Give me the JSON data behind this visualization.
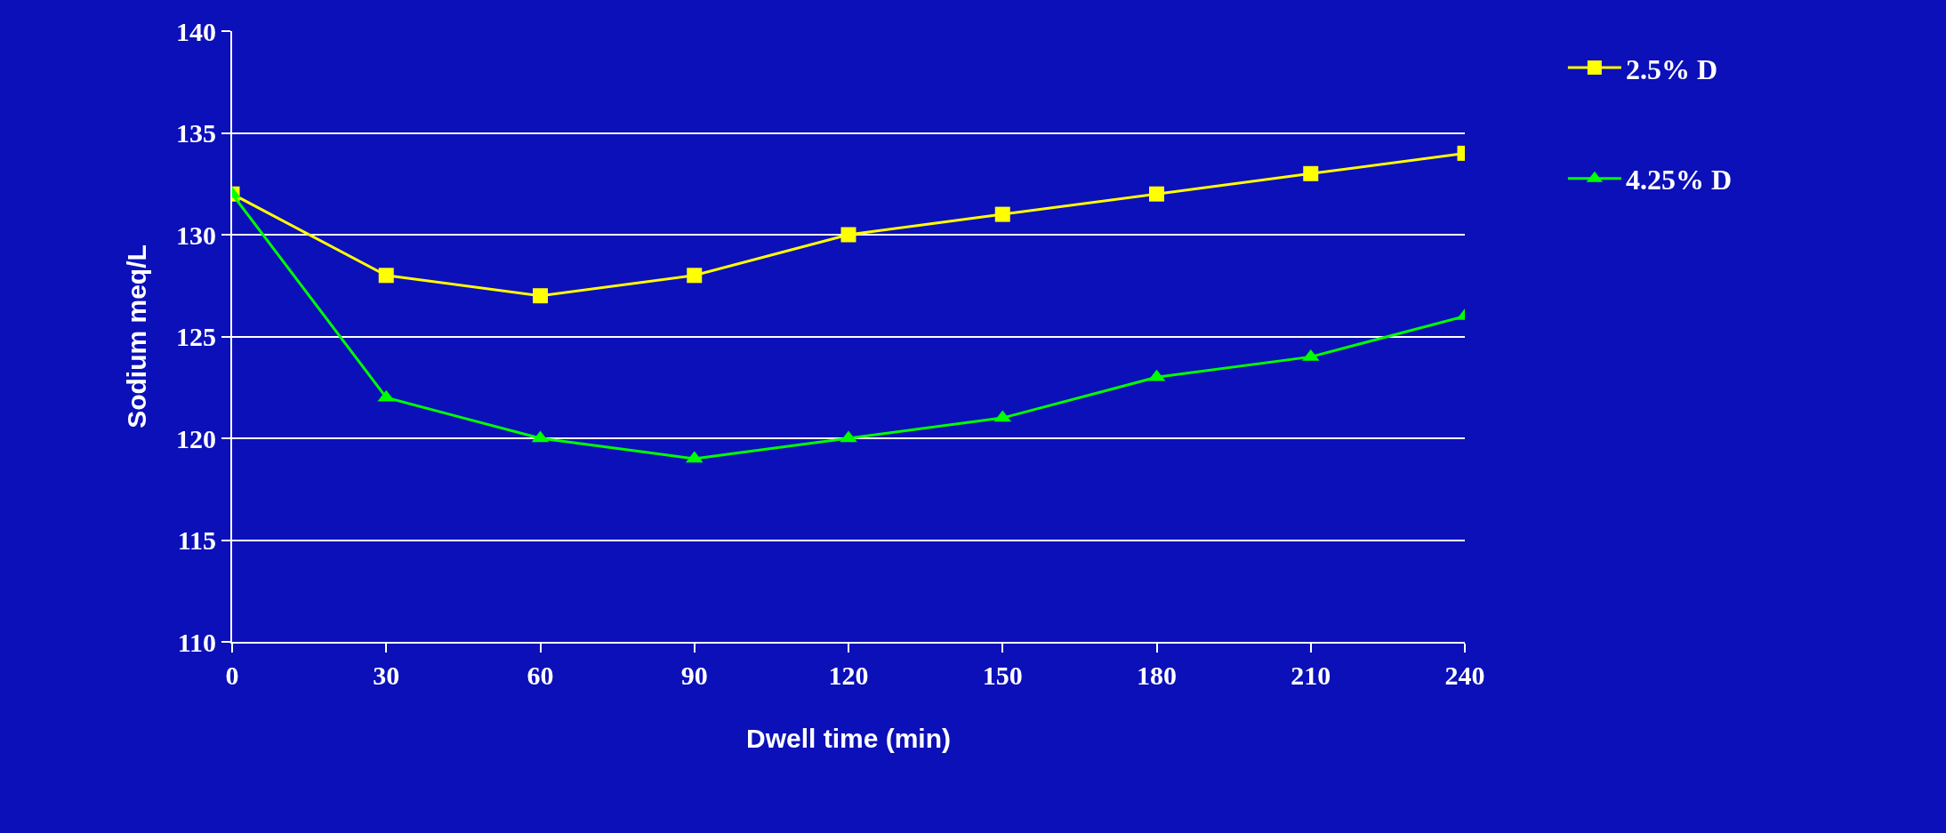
{
  "chart_data": {
    "type": "line",
    "xlabel": "Dwell time (min)",
    "ylabel": "Sodium meq/L",
    "x": [
      0,
      30,
      60,
      90,
      120,
      150,
      180,
      210,
      240
    ],
    "series": [
      {
        "name": "2.5% D",
        "color": "#ffff00",
        "marker": "square",
        "values": [
          132,
          128,
          127,
          128,
          130,
          131,
          132,
          133,
          134
        ]
      },
      {
        "name": "4.25% D",
        "color": "#00ff00",
        "marker": "triangle",
        "values": [
          132,
          122,
          120,
          119,
          120,
          121,
          123,
          124,
          126
        ]
      }
    ],
    "xlim": [
      0,
      240
    ],
    "xticks": [
      0,
      30,
      60,
      90,
      120,
      150,
      180,
      210,
      240
    ],
    "ylim": [
      110,
      140
    ],
    "yticks": [
      110,
      115,
      120,
      125,
      130,
      135,
      140
    ],
    "grid": "y",
    "legend": "right",
    "line_style": "solid"
  }
}
